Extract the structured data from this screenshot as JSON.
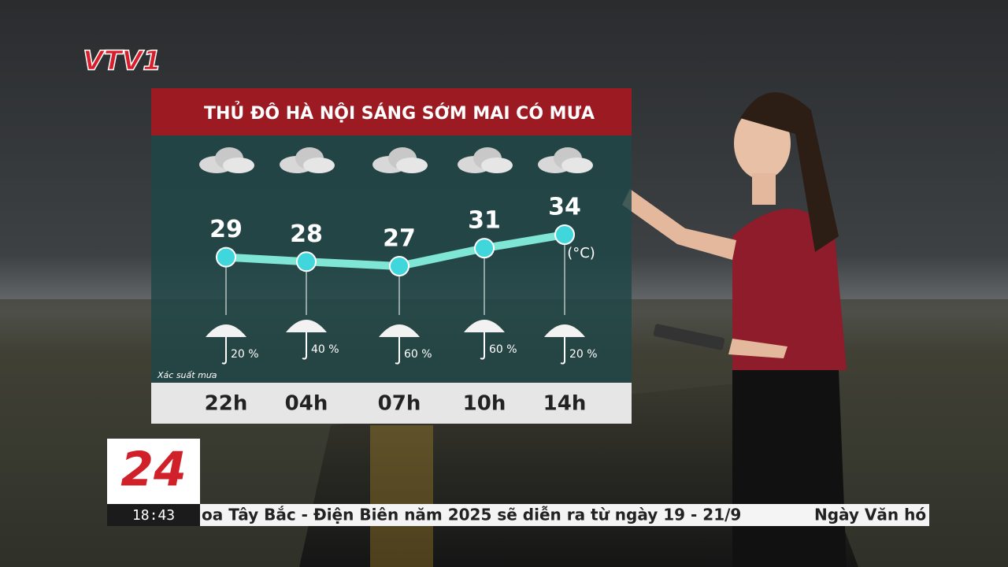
{
  "channel_logo": "VTV1",
  "news_logo": "24",
  "clock": "18:43",
  "ticker": [
    "oa Tây Bắc - Điện Biên năm 2025 sẽ diễn ra từ ngày 19 - 21/9",
    "Ngày Văn hó"
  ],
  "chart_data": {
    "type": "line",
    "title": "THỦ ĐÔ HÀ NỘI SÁNG SỚM MAI CÓ MƯA",
    "categories": [
      "22h",
      "04h",
      "07h",
      "10h",
      "14h"
    ],
    "values": [
      29,
      28,
      27,
      31,
      34
    ],
    "unit_label": "(°C)",
    "color": "#7fe6d6",
    "rain": {
      "label": "Xác suất mưa",
      "values": [
        20,
        40,
        60,
        60,
        20
      ],
      "value_labels": [
        "20 %",
        "40 %",
        "60 %",
        "60 %",
        "20 %"
      ]
    }
  }
}
